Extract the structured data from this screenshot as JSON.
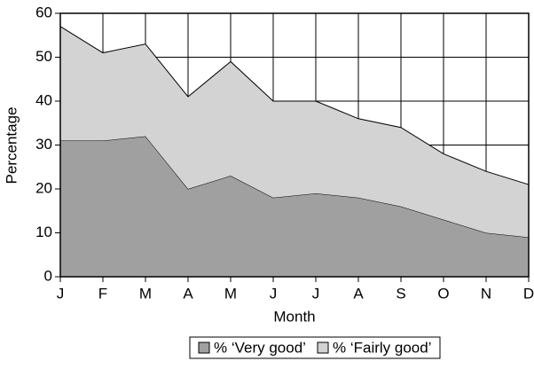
{
  "chart_data": {
    "type": "stacked_area",
    "x_label": "Month",
    "y_label": "Percentage",
    "categories": [
      "J",
      "F",
      "M",
      "A",
      "M",
      "J",
      "J",
      "A",
      "S",
      "O",
      "N",
      "D"
    ],
    "series": [
      {
        "name": "% ‘Very good’",
        "color": "#a0a0a0",
        "values": [
          31,
          31,
          32,
          20,
          23,
          18,
          19,
          18,
          16,
          13,
          10,
          9
        ]
      },
      {
        "name": "% ‘Fairly good’",
        "color": "#d3d3d3",
        "values": [
          26,
          20,
          21,
          21,
          26,
          22,
          21,
          18,
          18,
          15,
          14,
          12
        ]
      }
    ],
    "ylim": [
      0,
      60
    ],
    "yticks": [
      0,
      10,
      20,
      30,
      40,
      50,
      60
    ],
    "grid": true,
    "legend": "bottom"
  }
}
